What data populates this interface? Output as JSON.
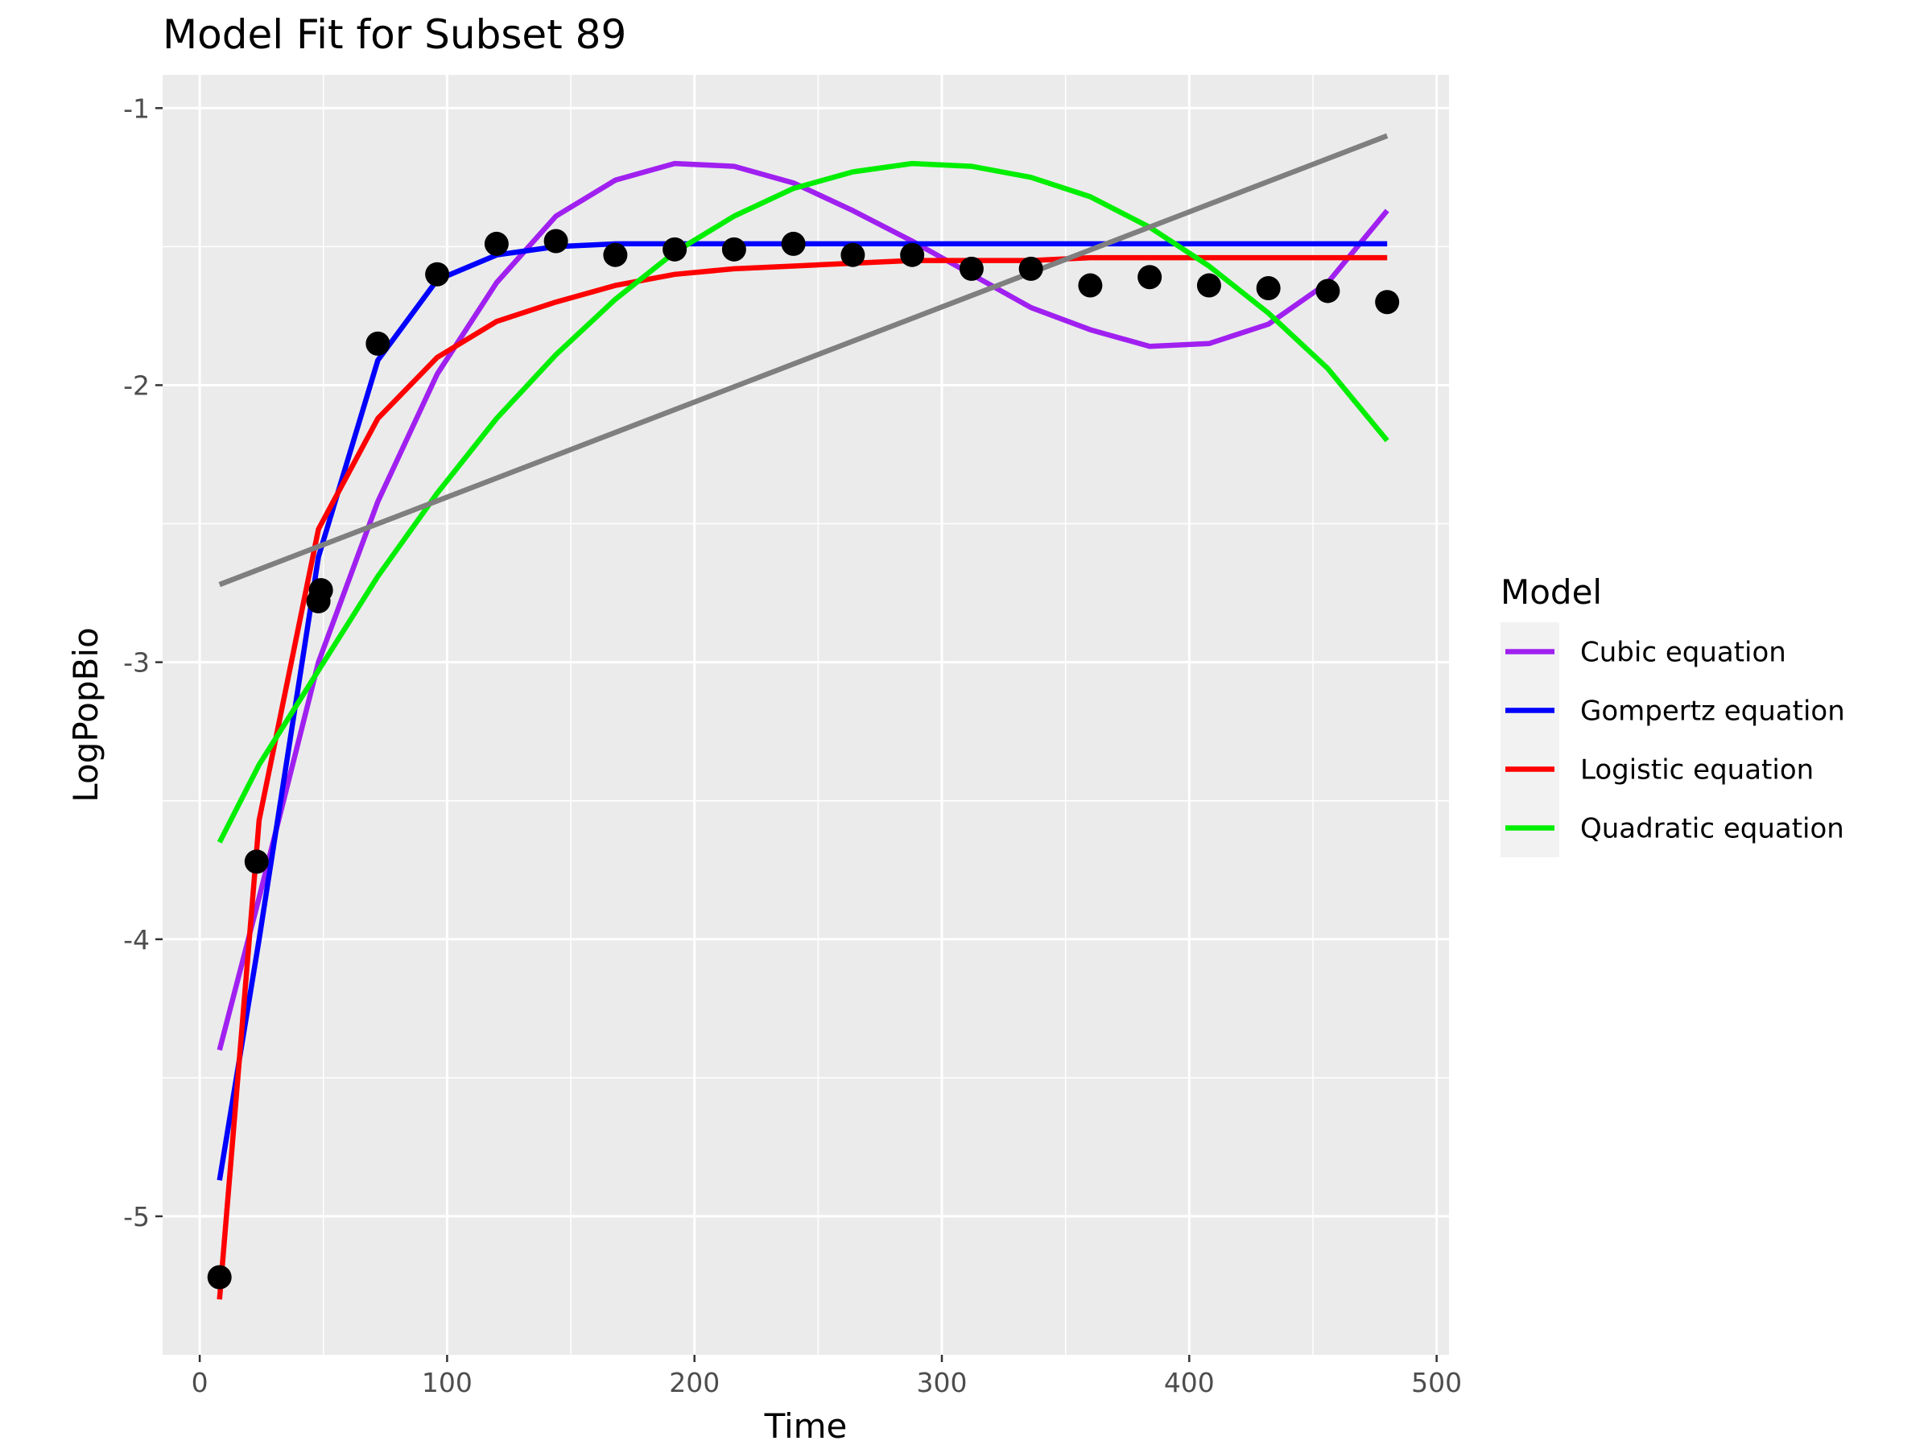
{
  "chart_data": {
    "type": "line",
    "title": "Model Fit for Subset 89",
    "xlabel": "Time",
    "ylabel": "LogPopBio",
    "xlim": [
      -15,
      505
    ],
    "ylim": [
      -5.5,
      -0.88
    ],
    "x_ticks": [
      0,
      100,
      200,
      300,
      400,
      500
    ],
    "x_tick_labels": [
      "0",
      "100",
      "200",
      "300",
      "400",
      "500"
    ],
    "y_ticks": [
      -1,
      -2,
      -3,
      -4,
      -5
    ],
    "y_tick_labels": [
      "-1",
      "-2",
      "-3",
      "-4",
      "-5"
    ],
    "grid": true,
    "legend": {
      "title": "Model",
      "position": "right",
      "entries": [
        {
          "label": "Cubic equation",
          "color": "#a020f0"
        },
        {
          "label": "Gompertz equation",
          "color": "#0000ff"
        },
        {
          "label": "Logistic equation",
          "color": "#ff0000"
        },
        {
          "label": "Quadratic equation",
          "color": "#00ee00"
        }
      ]
    },
    "points": {
      "color": "#000000",
      "x": [
        8,
        23,
        48,
        49,
        72,
        96,
        120,
        144,
        168,
        192,
        216,
        240,
        264,
        288,
        312,
        336,
        360,
        384,
        408,
        432,
        456,
        480
      ],
      "y": [
        -5.22,
        -3.72,
        -2.78,
        -2.74,
        -1.85,
        -1.6,
        -1.49,
        -1.48,
        -1.53,
        -1.51,
        -1.51,
        -1.49,
        -1.53,
        -1.53,
        -1.58,
        -1.58,
        -1.64,
        -1.61,
        -1.64,
        -1.65,
        -1.66,
        -1.7
      ]
    },
    "series": [
      {
        "color": "#a020f0",
        "x": [
          8,
          24,
          48,
          72,
          96,
          120,
          144,
          168,
          192,
          216,
          240,
          264,
          288,
          312,
          336,
          360,
          384,
          408,
          432,
          456,
          480
        ],
        "y": [
          -4.4,
          -3.85,
          -3.0,
          -2.42,
          -1.96,
          -1.63,
          -1.39,
          -1.26,
          -1.2,
          -1.21,
          -1.27,
          -1.37,
          -1.48,
          -1.6,
          -1.72,
          -1.8,
          -1.86,
          -1.85,
          -1.78,
          -1.63,
          -1.37
        ]
      },
      {
        "color": "#0000ff",
        "x": [
          8,
          24,
          48,
          72,
          96,
          120,
          144,
          168,
          192,
          216,
          240,
          264,
          288,
          312,
          336,
          360,
          384,
          408,
          432,
          456,
          480
        ],
        "y": [
          -4.87,
          -4.0,
          -2.62,
          -1.91,
          -1.62,
          -1.53,
          -1.5,
          -1.49,
          -1.49,
          -1.49,
          -1.49,
          -1.49,
          -1.49,
          -1.49,
          -1.49,
          -1.49,
          -1.49,
          -1.49,
          -1.49,
          -1.49,
          -1.49
        ]
      },
      {
        "color": "#ff0000",
        "x": [
          8,
          24,
          48,
          72,
          96,
          120,
          144,
          168,
          192,
          216,
          240,
          264,
          288,
          312,
          336,
          360,
          384,
          408,
          432,
          456,
          480
        ],
        "y": [
          -5.3,
          -3.57,
          -2.52,
          -2.12,
          -1.9,
          -1.77,
          -1.7,
          -1.64,
          -1.6,
          -1.58,
          -1.57,
          -1.56,
          -1.55,
          -1.55,
          -1.55,
          -1.54,
          -1.54,
          -1.54,
          -1.54,
          -1.54,
          -1.54
        ]
      },
      {
        "color": "#00ee00",
        "x": [
          8,
          24,
          48,
          72,
          96,
          120,
          144,
          168,
          192,
          216,
          240,
          264,
          288,
          312,
          336,
          360,
          384,
          408,
          432,
          456,
          480
        ],
        "y": [
          -3.65,
          -3.37,
          -3.03,
          -2.69,
          -2.39,
          -2.12,
          -1.89,
          -1.69,
          -1.52,
          -1.39,
          -1.29,
          -1.23,
          -1.2,
          -1.21,
          -1.25,
          -1.32,
          -1.43,
          -1.57,
          -1.74,
          -1.94,
          -2.2
        ]
      },
      {
        "color": "#7f7f7f",
        "x": [
          8,
          480
        ],
        "y": [
          -2.72,
          -1.1
        ]
      }
    ]
  }
}
